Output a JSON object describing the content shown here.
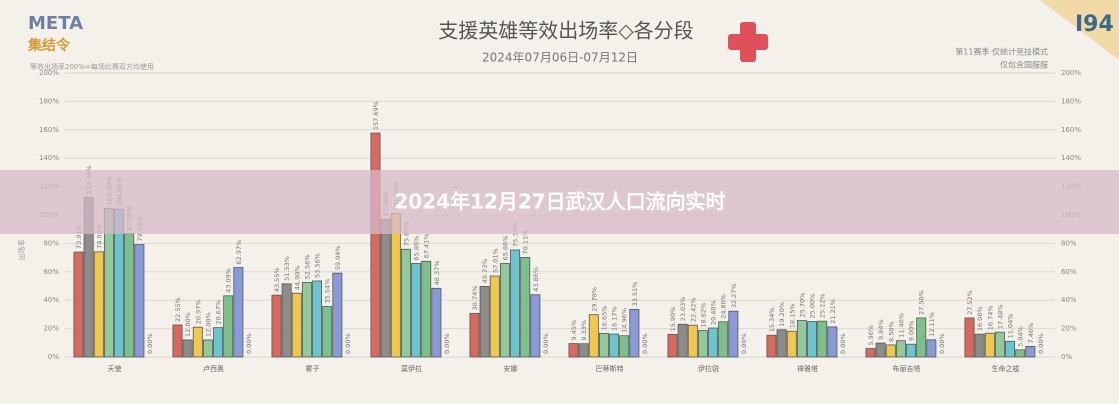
{
  "header": {
    "logo_top": "META",
    "logo_bottom": "集结令",
    "badge": "I94",
    "note_left": "等效出场率200%=每场比赛双方均使用",
    "note_right_1": "第11赛季·仅统计竞技模式",
    "note_right_2": "仅包含国服服"
  },
  "banner": "2024年12月27日武汉人口流向实时",
  "chart_data": {
    "type": "bar",
    "title": "支援英雄等效出场率◇各分段",
    "subtitle": "2024年07月06日-07月12日",
    "y_label": "出场率",
    "categories": [
      "天使",
      "卢西奥",
      "雾子",
      "莫伊拉",
      "安娜",
      "巴蒂斯特",
      "伊拉锐",
      "禅雅塔",
      "布丽吉塔",
      "生命之梭"
    ],
    "series": [
      {
        "color": "#d9695f",
        "values": [
          73.91,
          22.55,
          43.55,
          157.69,
          30.74,
          9.45,
          15.9,
          15.34,
          5.96,
          27.52
        ],
        "value_labels": [
          "73.91%",
          "22.55%",
          "43.55%",
          "157.69%",
          "30.74%",
          "9.45%",
          "15.90%",
          "15.34%",
          "5.96%",
          "27.52%"
        ]
      },
      {
        "color": "#8c8c8c",
        "values": [
          112.46,
          12.0,
          51.53,
          97.0,
          49.73,
          9.33,
          23.03,
          19.2,
          9.84,
          16.08
        ],
        "value_labels": [
          "112.46%",
          "12.00%",
          "51.53%",
          "97.00%",
          "49.73%",
          "9.33%",
          "23.03%",
          "19.20%",
          "9.84%",
          "16.08%"
        ]
      },
      {
        "color": "#f0c84e",
        "values": [
          74.04,
          20.97,
          44.9,
          101.0,
          57.01,
          29.78,
          22.42,
          18.15,
          8.5,
          16.74
        ],
        "value_labels": [
          "74.04%",
          "20.97%",
          "44.90%",
          "101.00%",
          "57.01%",
          "29.78%",
          "22.42%",
          "18.15%",
          "8.50%",
          "16.74%"
        ]
      },
      {
        "color": "#92c99b",
        "values": [
          104.59,
          12.0,
          52.56,
          75.85,
          65.86,
          16.65,
          18.62,
          25.7,
          11.46,
          17.48
        ],
        "value_labels": [
          "104.59%",
          "12.00%",
          "52.56%",
          "75.85%",
          "65.86%",
          "16.65%",
          "18.62%",
          "25.70%",
          "11.46%",
          "17.48%"
        ]
      },
      {
        "color": "#6cc4cf",
        "values": [
          104.04,
          20.67,
          53.56,
          65.86,
          75.35,
          16.17,
          20.4,
          25.0,
          9.0,
          11.04
        ],
        "value_labels": [
          "104.04%",
          "20.67%",
          "53.56%",
          "65.86%",
          "75.35%",
          "16.17%",
          "20.40%",
          "25.00%",
          "9.00%",
          "11.04%"
        ]
      },
      {
        "color": "#7cc08a",
        "values": [
          87.0,
          43.09,
          35.54,
          67.41,
          70.11,
          14.96,
          24.8,
          25.22,
          27.5,
          5.04
        ],
        "value_labels": [
          "87.00%",
          "43.09%",
          "35.54%",
          "67.41%",
          "70.11%",
          "14.96%",
          "24.80%",
          "25.22%",
          "27.50%",
          "5.04%"
        ]
      },
      {
        "color": "#8a9ad8",
        "values": [
          79.2,
          62.97,
          59.04,
          48.37,
          43.86,
          33.51,
          32.27,
          21.21,
          12.11,
          7.46
        ],
        "value_labels": [
          "79.20%",
          "62.97%",
          "59.04%",
          "48.37%",
          "43.86%",
          "33.51%",
          "32.27%",
          "21.21%",
          "12.11%",
          "7.46%"
        ]
      },
      {
        "color": "#b9a7d9",
        "values": [
          0,
          0,
          0,
          0,
          0,
          0,
          0,
          0,
          0,
          0
        ],
        "value_labels": [
          "0.00%",
          "0.00%",
          "0.00%",
          "0.00%",
          "0.00%",
          "0.00%",
          "0.00%",
          "0.00%",
          "0.00%",
          "0.00%"
        ]
      }
    ],
    "ylim": [
      0,
      200
    ],
    "yticks": [
      {
        "value": 0,
        "label": "0%"
      },
      {
        "value": 20,
        "label": "20%"
      },
      {
        "value": 40,
        "label": "40%"
      },
      {
        "value": 60,
        "label": "60%"
      },
      {
        "value": 80,
        "label": "80%"
      },
      {
        "value": 100,
        "label": "100%"
      },
      {
        "value": 120,
        "label": "120%"
      },
      {
        "value": 140,
        "label": "140%"
      },
      {
        "value": 160,
        "label": "160%"
      },
      {
        "value": 180,
        "label": "180%"
      },
      {
        "value": 200,
        "label": "200%"
      }
    ],
    "grid": true
  }
}
